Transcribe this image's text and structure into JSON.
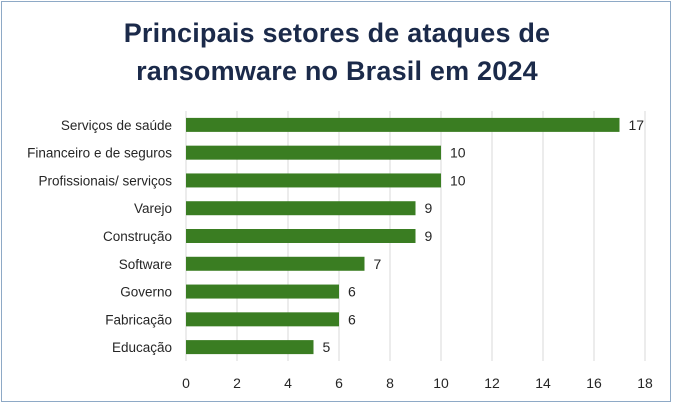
{
  "chart_data": {
    "type": "bar",
    "orientation": "horizontal",
    "title_line1": "Principais setores de ataques de",
    "title_line2": "ransomware no Brasil em 2024",
    "categories": [
      "Serviços de saúde",
      "Financeiro e de seguros",
      "Profissionais/ serviços",
      "Varejo",
      "Construção",
      "Software",
      "Governo",
      "Fabricação",
      "Educação"
    ],
    "values": [
      17,
      10,
      10,
      9,
      9,
      7,
      6,
      6,
      5
    ],
    "xlim": [
      0,
      18
    ],
    "xticks": [
      "0",
      "2",
      "4",
      "6",
      "8",
      "10",
      "12",
      "14",
      "16",
      "18"
    ],
    "grid": "vertical",
    "legend": "none",
    "bar_color": "#3a7d22",
    "grid_color": "#d9d9d9",
    "border_color": "#8ea9c6",
    "title_color": "#1b2a4a"
  }
}
